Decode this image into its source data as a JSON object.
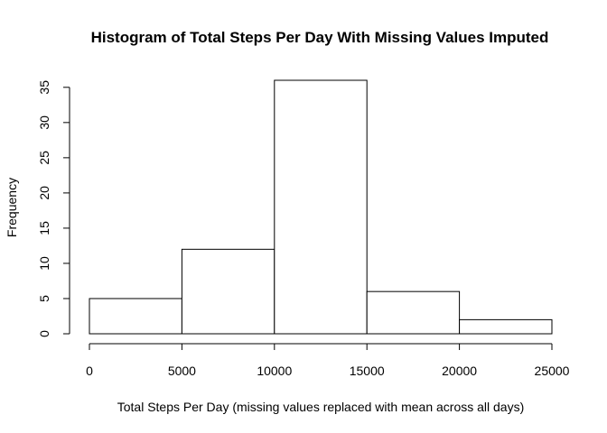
{
  "chart_data": {
    "type": "bar",
    "title": "Histogram of Total Steps Per Day With Missing Values Imputed",
    "xlabel": "Total Steps Per Day (missing values replaced with mean across all days)",
    "ylabel": "Frequency",
    "bins": [
      {
        "from": 0,
        "to": 5000,
        "value": 5
      },
      {
        "from": 5000,
        "to": 10000,
        "value": 12
      },
      {
        "from": 10000,
        "to": 15000,
        "value": 36
      },
      {
        "from": 15000,
        "to": 20000,
        "value": 6
      },
      {
        "from": 20000,
        "to": 25000,
        "value": 2
      }
    ],
    "xticks": [
      0,
      5000,
      10000,
      15000,
      20000,
      25000
    ],
    "yticks": [
      0,
      5,
      10,
      15,
      20,
      25,
      30,
      35
    ],
    "xlim": [
      0,
      25000
    ],
    "ylim": [
      0,
      36
    ],
    "grid": false,
    "bar_fill": "#ffffff",
    "bar_stroke": "#000000"
  }
}
